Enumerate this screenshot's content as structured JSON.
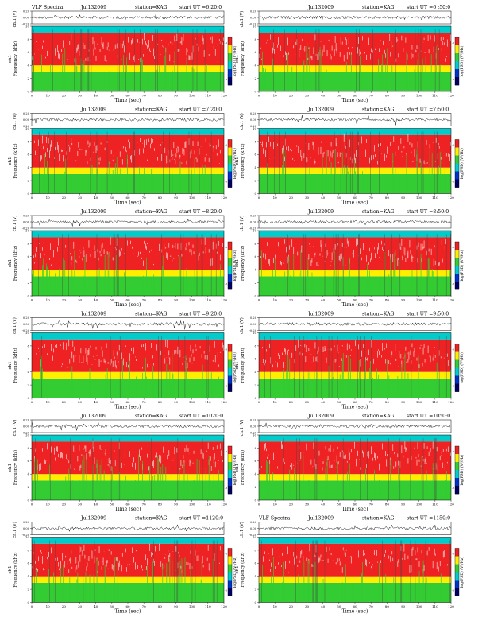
{
  "palette": {
    "trace": "#222222",
    "low_band": "#33cc33",
    "mid_band": "#ffee00",
    "high_band": "#ee2222",
    "top_band": "#00cccc",
    "gap": "#ffffff"
  },
  "labels": {
    "trace_axis": "ch.1 (V)",
    "freq_axis": "Frequency (kHz)",
    "channel": "ch1",
    "time_axis": "Time (sec)",
    "colorbar": "log(PSD) (V²/Hz)",
    "title_left": "VLF Spectra",
    "station": "station=KAG"
  },
  "panels": [
    {
      "date": "Jul132009",
      "title_left": "VLF Spectra",
      "station": "station=KAG",
      "start": "start UT =6:20:0"
    },
    {
      "date": "Jul132009",
      "title_left": "",
      "station": "station=KAG",
      "start": "start UT =6 :50:0"
    },
    {
      "date": "Jul132009",
      "title_left": "",
      "station": "station=KAG",
      "start": "start UT =7:20:0"
    },
    {
      "date": "Jul132009",
      "title_left": "",
      "station": "station=KAG",
      "start": "start UT =7:50:0"
    },
    {
      "date": "Jul132009",
      "title_left": "",
      "station": "station=KAG",
      "start": "start UT =8:20:0"
    },
    {
      "date": "Jul132009",
      "title_left": "",
      "station": "station=KAG",
      "start": "start UT =8:50:0"
    },
    {
      "date": "Jul132009",
      "title_left": "",
      "station": "station=KAG",
      "start": "start UT =9:20:0"
    },
    {
      "date": "Jul132009",
      "title_left": "",
      "station": "station=KAG",
      "start": "start UT =9:50:0"
    },
    {
      "date": "Jul132009",
      "title_left": "",
      "station": "station=KAG",
      "start": "start UT =1020:0"
    },
    {
      "date": "Jul132009",
      "title_left": "",
      "station": "station=KAG",
      "start": "start UT =1050:0"
    },
    {
      "date": "Jul132009",
      "title_left": "",
      "station": "station=KAG",
      "start": "start UT =1120:0"
    },
    {
      "date": "Jul132009",
      "title_left": "VLF Spectra",
      "station": "station=KAG",
      "start": "start UT =1150:0"
    }
  ],
  "chart_data": {
    "type": "heatmap",
    "x_ticks": [
      0,
      10,
      20,
      30,
      40,
      50,
      60,
      70,
      80,
      90,
      100,
      110,
      120
    ],
    "x_range": [
      0,
      120
    ],
    "y_ticks": [
      0,
      2,
      4,
      6,
      8,
      10
    ],
    "y_range": [
      0,
      10
    ],
    "trace_ticks": [
      "0.20",
      "0.00",
      "-0.20"
    ],
    "trace_range": [
      -0.2,
      0.2
    ],
    "colorbar_ticks": [
      "-6",
      "-8"
    ],
    "bands": [
      {
        "from": 0,
        "to": 3,
        "color": "low_band"
      },
      {
        "from": 3,
        "to": 4,
        "color": "mid_band"
      },
      {
        "from": 4,
        "to": 9,
        "color": "high_band"
      },
      {
        "from": 9,
        "to": 10,
        "color": "top_band"
      }
    ],
    "title": "",
    "xlabel": "Time (sec)",
    "ylabel": "Frequency (kHz)"
  }
}
